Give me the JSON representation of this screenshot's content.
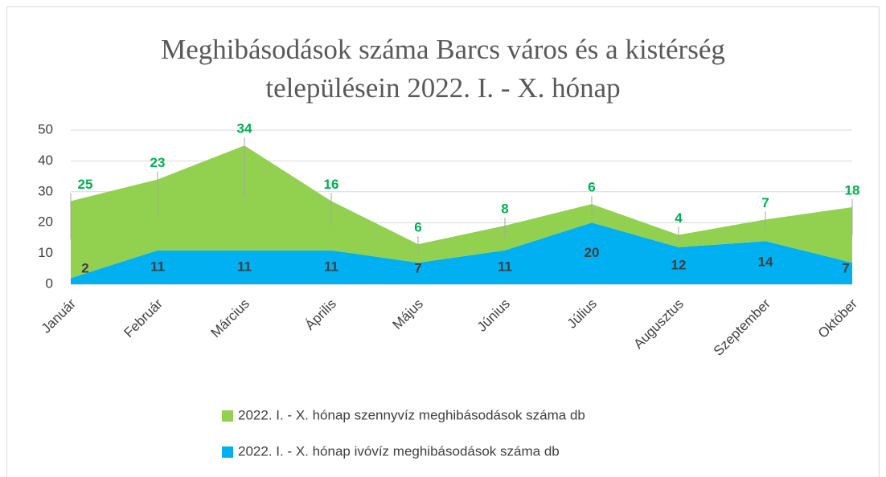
{
  "chart_data": {
    "type": "stacked_area",
    "title": "Meghibásodások száma Barcs város és a kistérség településein 2022. I. - X. hónap",
    "categories": [
      "Január",
      "Február",
      "Március",
      "Április",
      "Május",
      "Június",
      "Július",
      "Augusztus",
      "Szeptember",
      "Október"
    ],
    "series": [
      {
        "name": "2022. I. - X. hónap ivóvíz meghibásodások száma db",
        "color": "#00b0f0",
        "label_color": "#404040",
        "values": [
          2,
          11,
          11,
          11,
          7,
          11,
          20,
          12,
          14,
          7
        ]
      },
      {
        "name": "2022. I. - X. hónap szennyvíz meghibásodások száma db",
        "color": "#92d050",
        "label_color": "#00b050",
        "values": [
          25,
          23,
          34,
          16,
          6,
          8,
          6,
          4,
          7,
          18
        ]
      }
    ],
    "ylim": [
      0,
      50
    ],
    "yticks": [
      0,
      10,
      20,
      30,
      40,
      50
    ],
    "grid": true,
    "legend": "bottom"
  }
}
